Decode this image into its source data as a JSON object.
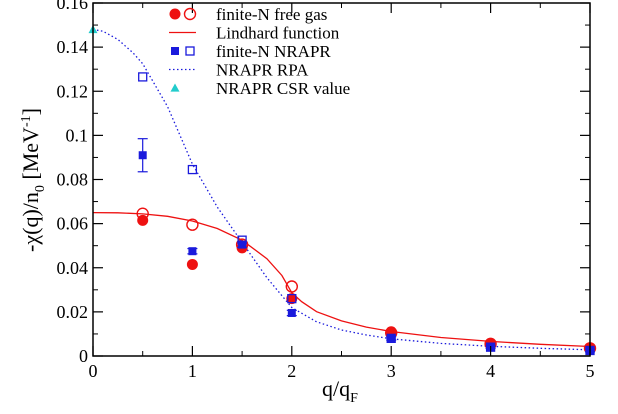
{
  "chart_data": {
    "type": "scatter",
    "xlabel": "q/q",
    "xlabel_sub": "F",
    "ylabel_parts": [
      "-χ(q)/n",
      "0",
      " [MeV",
      "-1",
      "]"
    ],
    "xlim": [
      0,
      5
    ],
    "ylim": [
      0,
      0.16
    ],
    "xticks": [
      0,
      1,
      2,
      3,
      4,
      5
    ],
    "xtick_labels": [
      "0",
      "1",
      "2",
      "3",
      "4",
      "5"
    ],
    "yticks": [
      0,
      0.02,
      0.04,
      0.06,
      0.08,
      0.1,
      0.12,
      0.14,
      0.16
    ],
    "ytick_labels": [
      "0",
      "0.02",
      "0.04",
      "0.06",
      "0.08",
      "0.1",
      "0.12",
      "0.14",
      "0.16"
    ],
    "grid": false,
    "legend_position": "top-center",
    "legend": [
      {
        "label": "finite-N free gas",
        "marker": "circle-filled-open",
        "color": "#ee1111"
      },
      {
        "label": "Lindhard function",
        "marker": "line-solid",
        "color": "#ee1111"
      },
      {
        "label": "finite-N NRAPR",
        "marker": "square-filled-open",
        "color": "#1a1adc"
      },
      {
        "label": "NRAPR RPA",
        "marker": "line-dotted",
        "color": "#1a1adc"
      },
      {
        "label": "NRAPR CSR value",
        "marker": "triangle-filled",
        "color": "#22cccc"
      }
    ],
    "series": [
      {
        "name": "finite-N free gas",
        "style": "open-circle",
        "color": "#ee1111",
        "points": [
          [
            0.5,
            0.0645
          ],
          [
            1.0,
            0.0595
          ],
          [
            1.5,
            0.0505
          ],
          [
            2.0,
            0.0315
          ],
          [
            3.0,
            0.0105
          ],
          [
            4.0,
            0.0055
          ],
          [
            5.0,
            0.0035
          ]
        ]
      },
      {
        "name": "finite-N free gas",
        "style": "filled-circle",
        "color": "#ee1111",
        "points": [
          [
            0.5,
            0.0615
          ],
          [
            1.0,
            0.0415
          ],
          [
            1.5,
            0.049
          ],
          [
            2.0,
            0.026
          ],
          [
            3.0,
            0.011
          ],
          [
            4.0,
            0.0055
          ],
          [
            5.0,
            0.0035
          ]
        ]
      },
      {
        "name": "Lindhard function",
        "style": "line-solid",
        "color": "#ee1111",
        "points": [
          [
            0,
            0.065
          ],
          [
            0.25,
            0.0649
          ],
          [
            0.5,
            0.0644
          ],
          [
            0.75,
            0.0633
          ],
          [
            1.0,
            0.0612
          ],
          [
            1.25,
            0.0578
          ],
          [
            1.5,
            0.0525
          ],
          [
            1.75,
            0.0441
          ],
          [
            1.9,
            0.0365
          ],
          [
            2.0,
            0.0287
          ],
          [
            2.1,
            0.0246
          ],
          [
            2.25,
            0.0201
          ],
          [
            2.5,
            0.0159
          ],
          [
            2.75,
            0.0131
          ],
          [
            3.0,
            0.0111
          ],
          [
            3.5,
            0.0084
          ],
          [
            4.0,
            0.0066
          ],
          [
            4.5,
            0.0053
          ],
          [
            5.0,
            0.0043
          ]
        ]
      },
      {
        "name": "finite-N NRAPR",
        "style": "open-square",
        "color": "#1a1adc",
        "points": [
          [
            0.5,
            0.1265
          ],
          [
            1.0,
            0.0845
          ],
          [
            1.5,
            0.0525
          ],
          [
            2.0,
            0.026
          ],
          [
            3.0,
            0.008
          ],
          [
            4.0,
            0.004
          ],
          [
            5.0,
            0.0025
          ]
        ]
      },
      {
        "name": "finite-N NRAPR",
        "style": "filled-square",
        "color": "#1a1adc",
        "points": [
          [
            0.5,
            0.091
          ],
          [
            1.0,
            0.0475
          ],
          [
            1.5,
            0.0505
          ],
          [
            2.0,
            0.0195
          ],
          [
            3.0,
            0.008
          ],
          [
            4.0,
            0.004
          ],
          [
            5.0,
            0.0025
          ]
        ],
        "errors": [
          0.0075,
          0.0012,
          0.0012,
          0.0012,
          0.0008,
          0.0006,
          0.0006
        ]
      },
      {
        "name": "NRAPR RPA",
        "style": "line-dotted",
        "color": "#1a1adc",
        "points": [
          [
            0,
            0.148
          ],
          [
            0.1,
            0.1472
          ],
          [
            0.25,
            0.1435
          ],
          [
            0.4,
            0.1375
          ],
          [
            0.5,
            0.1325
          ],
          [
            0.75,
            0.113
          ],
          [
            1.0,
            0.087
          ],
          [
            1.25,
            0.0675
          ],
          [
            1.5,
            0.0515
          ],
          [
            1.75,
            0.0355
          ],
          [
            2.0,
            0.022
          ],
          [
            2.25,
            0.0155
          ],
          [
            2.5,
            0.0118
          ],
          [
            2.75,
            0.0095
          ],
          [
            3.0,
            0.0078
          ],
          [
            3.5,
            0.0057
          ],
          [
            4.0,
            0.0044
          ],
          [
            4.5,
            0.0035
          ],
          [
            5.0,
            0.0028
          ]
        ]
      },
      {
        "name": "NRAPR CSR value",
        "style": "filled-triangle",
        "color": "#22cccc",
        "points": [
          [
            0,
            0.148
          ]
        ]
      }
    ]
  }
}
